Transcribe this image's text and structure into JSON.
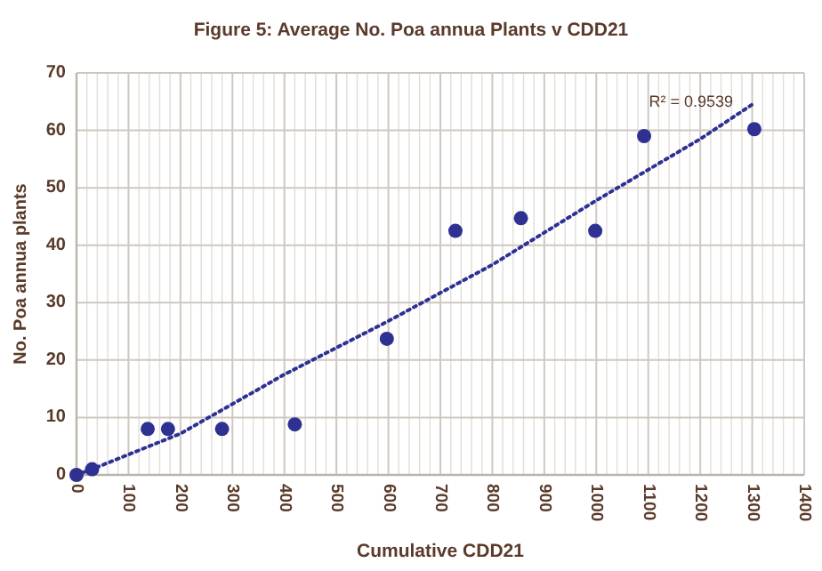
{
  "chart_data": {
    "type": "scatter",
    "title": "Figure 5: Average No. Poa annua Plants v CDD21",
    "xlabel": "Cumulative CDD21",
    "ylabel": "No. Poa annua plants",
    "xlim": [
      0,
      1400
    ],
    "xticks": [
      0,
      100,
      200,
      300,
      400,
      500,
      600,
      700,
      800,
      900,
      1000,
      1100,
      1200,
      1300,
      1400
    ],
    "ylim": [
      0,
      70
    ],
    "yticks": [
      0,
      10,
      20,
      30,
      40,
      50,
      60,
      70
    ],
    "grid": true,
    "marker": "circle",
    "series": [
      {
        "color": "#2e3192",
        "x": [
          0,
          30,
          137,
          176,
          280,
          420,
          597,
          729,
          855,
          998,
          1092,
          1304
        ],
        "values": [
          0,
          1,
          8,
          8,
          8,
          8.8,
          23.7,
          42.5,
          44.7,
          42.5,
          59,
          60.2
        ]
      },
      {
        "type": "line",
        "color": "#2e3192",
        "line_style": "dotted",
        "marker": "none",
        "x": [
          0,
          30,
          200,
          400,
          600,
          800,
          1000,
          1200,
          1300
        ],
        "values": [
          0,
          1,
          7.2,
          17.5,
          26.8,
          36.6,
          47.8,
          58.5,
          64.5
        ]
      }
    ],
    "annotations": [
      "R² = 0.9539"
    ]
  }
}
